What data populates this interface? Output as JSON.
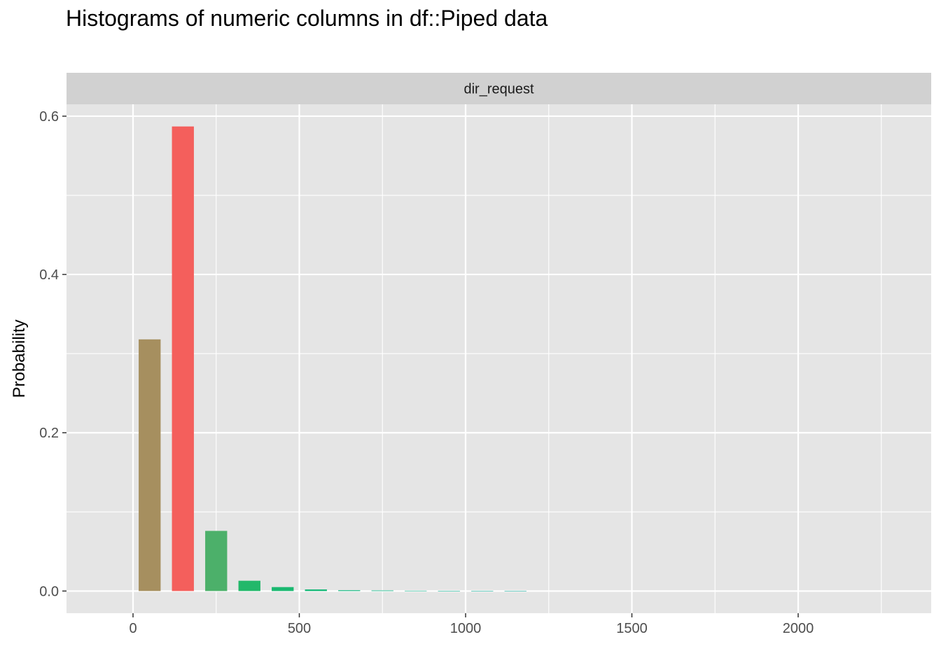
{
  "chart_data": {
    "type": "bar",
    "title": "Histograms of numeric columns in df::Piped data",
    "facet": "dir_request",
    "xlabel": "",
    "ylabel": "Probability",
    "xlim": [
      -200,
      2400
    ],
    "ylim": [
      -0.028,
      0.615
    ],
    "x_ticks": [
      0,
      500,
      1000,
      1500,
      2000
    ],
    "x_tick_labels": [
      "0",
      "500",
      "1000",
      "1500",
      "2000"
    ],
    "y_ticks": [
      0.0,
      0.2,
      0.4,
      0.6
    ],
    "y_tick_labels": [
      "0.0",
      "0.2",
      "0.4",
      "0.6"
    ],
    "grid": true,
    "bin_width": 100,
    "bar_width": 66,
    "bins": [
      {
        "x": 50,
        "value": 0.318,
        "color": "#A68F5F"
      },
      {
        "x": 150,
        "value": 0.587,
        "color": "#F45F5C"
      },
      {
        "x": 250,
        "value": 0.076,
        "color": "#4CB06A"
      },
      {
        "x": 350,
        "value": 0.013,
        "color": "#22B86A"
      },
      {
        "x": 450,
        "value": 0.005,
        "color": "#1BB871"
      },
      {
        "x": 550,
        "value": 0.002,
        "color": "#12B776"
      },
      {
        "x": 650,
        "value": 0.001,
        "color": "#0CB67C"
      },
      {
        "x": 750,
        "value": 0.0007,
        "color": "#08B482"
      },
      {
        "x": 850,
        "value": 0.0004,
        "color": "#06B288"
      },
      {
        "x": 950,
        "value": 0.0002,
        "color": "#06AF8F"
      },
      {
        "x": 1050,
        "value": 0.0001,
        "color": "#0AAC95"
      },
      {
        "x": 1150,
        "value": 5e-05,
        "color": "#0FA99B"
      }
    ],
    "colors": {
      "panel_bg": "#E5E5E5",
      "strip_bg": "#D1D1D1",
      "grid": "#FFFFFF"
    }
  }
}
